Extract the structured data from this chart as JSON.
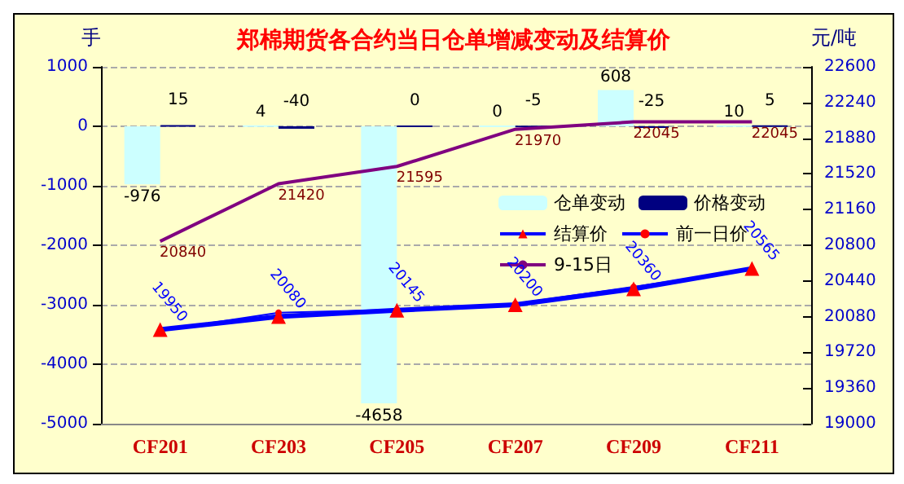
{
  "chart_data": {
    "type": "bar",
    "title": "郑棉期货各合约当日仓单增减变动及结算价",
    "ylabel": "手",
    "y2label": "元/吨",
    "categories": [
      "CF201",
      "CF203",
      "CF205",
      "CF207",
      "CF209",
      "CF211"
    ],
    "series": [
      {
        "name": "仓单变动",
        "color": "#ccffff",
        "values": [
          -976,
          4,
          -4658,
          0,
          608,
          10
        ],
        "value_labels": [
          "-976",
          "4",
          "-4658",
          "0",
          "608",
          "10"
        ]
      },
      {
        "name": "价格变动",
        "color": "#000080",
        "values": [
          15,
          -40,
          0,
          -5,
          -25,
          5
        ],
        "value_labels": [
          "15",
          "-40",
          "0",
          "-5",
          "-25",
          "5"
        ]
      },
      {
        "name": "结算价",
        "type": "line",
        "axis": "y2",
        "color": "#0000ff",
        "marker": "triangle",
        "values": [
          19950,
          20080,
          20145,
          20200,
          20360,
          20565
        ],
        "value_labels": [
          "19950",
          "20080",
          "20145",
          "20200",
          "20360",
          "20565"
        ]
      },
      {
        "name": "前一日价",
        "type": "line",
        "axis": "y2",
        "color": "#0000ff",
        "marker": "circle",
        "values": [
          19940,
          20120,
          20150,
          20210,
          20380,
          20560
        ]
      },
      {
        "name": "9-15日",
        "type": "line",
        "axis": "y2",
        "color": "#800080",
        "marker": "none",
        "values": [
          20840,
          21420,
          21595,
          21970,
          22045,
          22045
        ],
        "value_labels": [
          "20840",
          "21420",
          "21595",
          "21970",
          "22045",
          "22045"
        ]
      }
    ],
    "ylim": [
      -5000,
      1000
    ],
    "yticks": [
      -5000,
      -4000,
      -3000,
      -2000,
      -1000,
      0,
      1000
    ],
    "y2lim": [
      19000,
      22600
    ],
    "y2ticks": [
      19000,
      19360,
      19720,
      20080,
      20440,
      20800,
      21160,
      21520,
      21880,
      22240,
      22600
    ],
    "grid": "y",
    "legend": "right"
  }
}
